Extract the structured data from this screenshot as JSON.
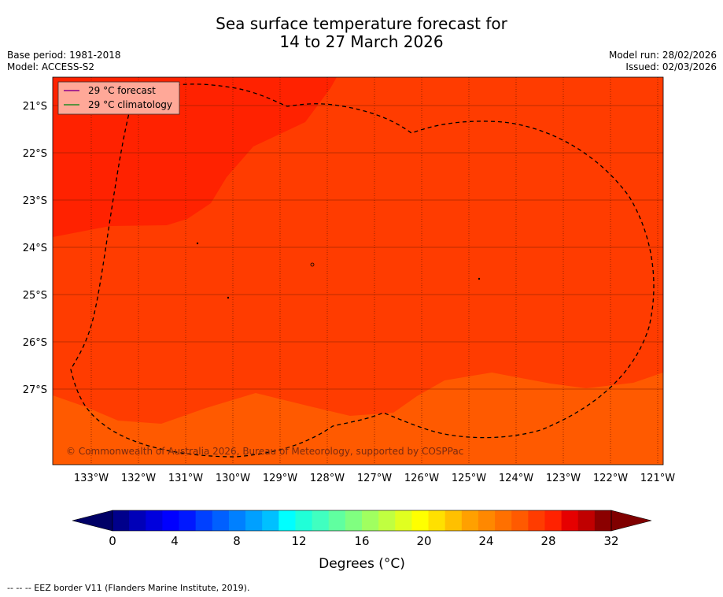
{
  "header": {
    "title_line1": "Sea surface temperature forecast for",
    "title_line2": "14 to 27 March 2026",
    "base_period": "Base period: 1981-2018",
    "model": "Model: ACCESS-S2",
    "model_run": "Model run: 28/02/2026",
    "issued": "Issued: 02/03/2026"
  },
  "map": {
    "lat_labels": [
      "21°S",
      "22°S",
      "23°S",
      "24°S",
      "25°S",
      "26°S",
      "27°S"
    ],
    "lon_labels": [
      "133°W",
      "132°W",
      "131°W",
      "130°W",
      "129°W",
      "128°W",
      "127°W",
      "126°W",
      "125°W",
      "124°W",
      "123°W",
      "122°W",
      "121°W"
    ],
    "copyright": "© Commonwealth of Australia 2026, Bureau of Meteorology, supported by COSPPac",
    "legend": [
      {
        "label": "29 °C  forecast",
        "color": "#8b008b"
      },
      {
        "label": "29 °C  climatology",
        "color": "#228b22"
      }
    ],
    "colors": {
      "above_29": "#ff2200",
      "28_29": "#ff3c00",
      "27_28": "#ff5a00"
    }
  },
  "colorbar": {
    "tick_labels": [
      "0",
      "4",
      "8",
      "12",
      "16",
      "20",
      "24",
      "28",
      "32"
    ],
    "title": "Degrees (°C)",
    "under_color": "#000066",
    "over_color": "#800000",
    "colors": [
      "#00008b",
      "#0000b8",
      "#0000dd",
      "#0000ff",
      "#0018ff",
      "#0040ff",
      "#0060ff",
      "#0080ff",
      "#00a0ff",
      "#00c0ff",
      "#00ffff",
      "#20ffd8",
      "#40ffc0",
      "#60ffa0",
      "#80ff80",
      "#a0ff60",
      "#c0ff40",
      "#e0ff20",
      "#ffff00",
      "#ffe000",
      "#ffc000",
      "#ffa000",
      "#ff8800",
      "#ff7000",
      "#ff5a00",
      "#ff3c00",
      "#ff2200",
      "#e60000",
      "#c00000",
      "#8b0000"
    ]
  },
  "footnote": "--  --  -- EEZ border V11 (Flanders Marine Institute, 2019)."
}
